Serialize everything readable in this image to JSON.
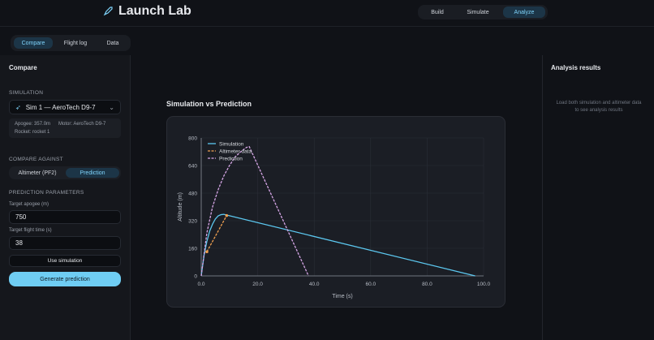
{
  "header": {
    "title": "Launch Lab",
    "nav": [
      "Build",
      "Simulate",
      "Analyze"
    ],
    "active_nav": 2
  },
  "tabs": {
    "items": [
      "Compare",
      "Flight log",
      "Data"
    ],
    "active": 0
  },
  "left_panel": {
    "title": "Compare",
    "simulation_label": "SIMULATION",
    "simulation_select": "Sim 1 — AeroTech D9-7",
    "sim_info": {
      "apogee": "Apogee: 357.0m",
      "motor": "Motor: AeroTech D9-7",
      "rocket": "Rocket: rocket 1"
    },
    "compare_label": "COMPARE AGAINST",
    "compare_options": [
      "Altimeter (PF2)",
      "Prediction"
    ],
    "compare_active": 1,
    "params_label": "PREDICTION PARAMETERS",
    "apogee_label": "Target apogee (m)",
    "apogee_value": "750",
    "time_label": "Target flight time (s)",
    "time_value": "38",
    "use_sim_button": "Use simulation",
    "generate_button": "Generate prediction"
  },
  "right_panel": {
    "title": "Analysis results",
    "message": "Load both simulation and altimeter data to see analysis results"
  },
  "chart_data": {
    "type": "line",
    "title": "Simulation vs Prediction",
    "x_label": "Time (s)",
    "y_label": "Altitude (m)",
    "xlim": [
      0,
      100
    ],
    "ylim": [
      0,
      800
    ],
    "xticks": [
      {
        "value": 0,
        "label": "0.0"
      },
      {
        "value": 20,
        "label": "20.0"
      },
      {
        "value": 40,
        "label": "40.0"
      },
      {
        "value": 60,
        "label": "60.0"
      },
      {
        "value": 80,
        "label": "80.0"
      },
      {
        "value": 100,
        "label": "100.0"
      }
    ],
    "yticks": [
      0,
      160,
      320,
      480,
      640,
      800
    ],
    "grid": true,
    "legend": "top-left",
    "series": [
      {
        "name": "Simulation",
        "color": "#5cc8f0",
        "line_style": "solid",
        "x": [
          0,
          1,
          2,
          3,
          4,
          5,
          6,
          7,
          8,
          97
        ],
        "values": [
          0,
          120,
          200,
          260,
          300,
          330,
          348,
          355,
          357,
          0
        ]
      },
      {
        "name": "Altimeter data",
        "color": "#f0a050",
        "line_style": "dashed",
        "x": [
          2,
          9
        ],
        "values": [
          140,
          350
        ]
      },
      {
        "name": "Prediction",
        "color": "#d6a6e6",
        "line_style": "dashed",
        "x": [
          0,
          2,
          4,
          6,
          8,
          10,
          12,
          14,
          16,
          17,
          38
        ],
        "values": [
          0,
          250,
          400,
          500,
          580,
          640,
          690,
          720,
          745,
          750,
          0
        ]
      }
    ]
  }
}
